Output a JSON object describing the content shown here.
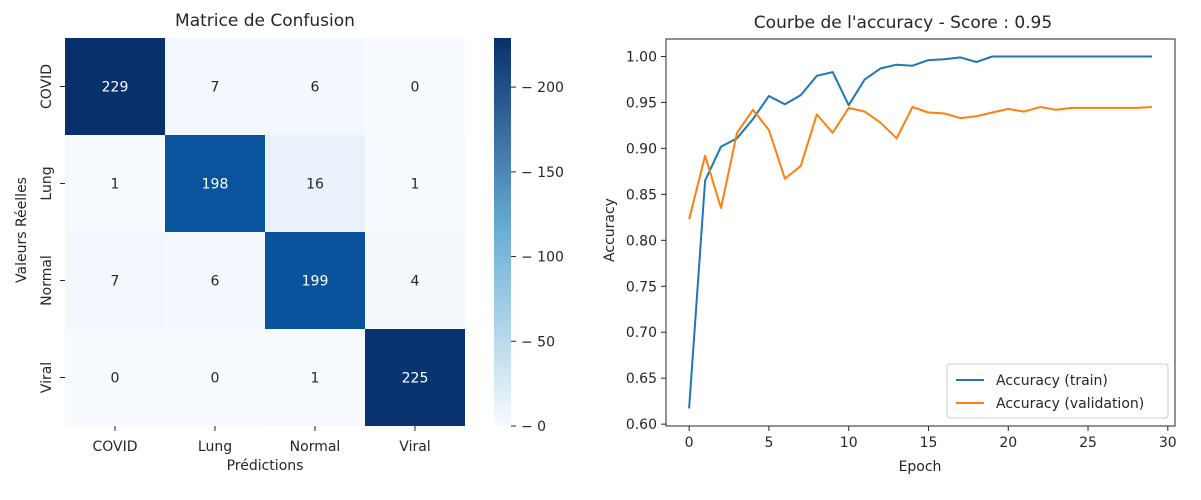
{
  "chart_data": [
    {
      "type": "heatmap",
      "title": "Matrice de Confusion",
      "xlabel": "Prédictions",
      "ylabel": "Valeurs Réelles",
      "x_categories": [
        "COVID",
        "Lung",
        "Normal",
        "Viral"
      ],
      "y_categories": [
        "COVID",
        "Lung",
        "Normal",
        "Viral"
      ],
      "values": [
        [
          229,
          7,
          6,
          0
        ],
        [
          1,
          198,
          16,
          1
        ],
        [
          7,
          6,
          199,
          4
        ],
        [
          0,
          0,
          1,
          225
        ]
      ],
      "colorbar": {
        "min": 0,
        "max": 229,
        "ticks": [
          0,
          50,
          100,
          150,
          200
        ]
      },
      "colormap": {
        "low": "#f7fbff",
        "high": "#08306b"
      }
    },
    {
      "type": "line",
      "title": "Courbe de l'accuracy - Score : 0.95",
      "xlabel": "Epoch",
      "ylabel": "Accuracy",
      "xlim": [
        -1.45,
        30.45
      ],
      "ylim": [
        0.598,
        1.019
      ],
      "xticks": [
        0,
        5,
        10,
        15,
        20,
        25,
        30
      ],
      "yticks": [
        "0.60",
        "0.65",
        "0.70",
        "0.75",
        "0.80",
        "0.85",
        "0.90",
        "0.95",
        "1.00"
      ],
      "legend_position": "bottom-right",
      "x": [
        0,
        1,
        2,
        3,
        4,
        5,
        6,
        7,
        8,
        9,
        10,
        11,
        12,
        13,
        14,
        15,
        16,
        17,
        18,
        19,
        20,
        21,
        22,
        23,
        24,
        25,
        26,
        27,
        28,
        29
      ],
      "series": [
        {
          "name": "Accuracy (train)",
          "color": "#1f77b4",
          "values": [
            0.617,
            0.865,
            0.902,
            0.911,
            0.932,
            0.957,
            0.948,
            0.958,
            0.979,
            0.983,
            0.947,
            0.975,
            0.987,
            0.991,
            0.99,
            0.996,
            0.997,
            0.999,
            0.994,
            1.0,
            1.0,
            1.0,
            1.0,
            1.0,
            1.0,
            1.0,
            1.0,
            1.0,
            1.0,
            1.0
          ]
        },
        {
          "name": "Accuracy (validation)",
          "color": "#ff7f0e",
          "values": [
            0.823,
            0.892,
            0.835,
            0.917,
            0.942,
            0.92,
            0.867,
            0.881,
            0.937,
            0.917,
            0.944,
            0.94,
            0.928,
            0.911,
            0.945,
            0.939,
            0.938,
            0.933,
            0.935,
            0.939,
            0.943,
            0.94,
            0.945,
            0.942,
            0.944,
            0.944,
            0.944,
            0.944,
            0.944,
            0.945
          ]
        }
      ]
    }
  ]
}
